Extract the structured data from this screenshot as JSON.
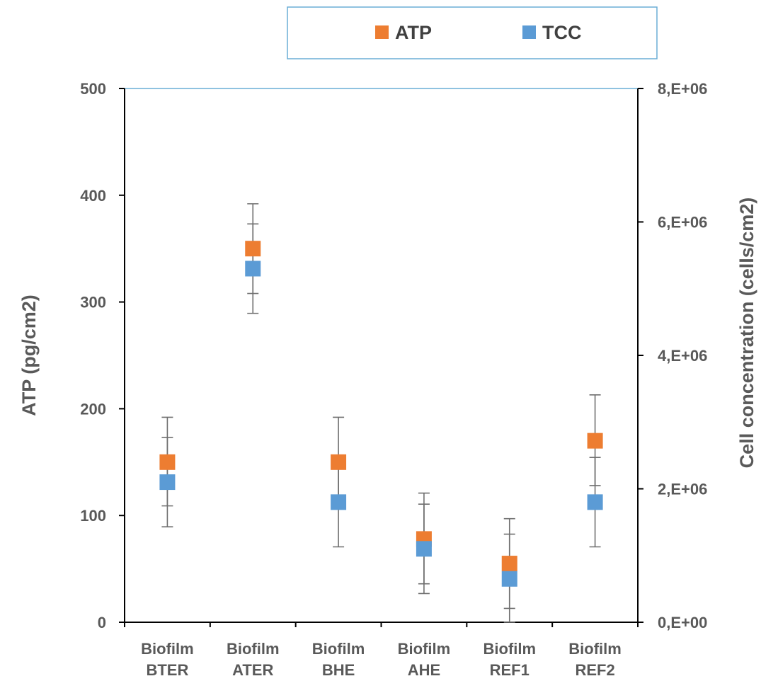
{
  "chart_data": {
    "type": "scatter",
    "categories": [
      "Biofilm\nBTER",
      "Biofilm\nATER",
      "Biofilm\nBHE",
      "Biofilm\nAHE",
      "Biofilm\nREF1",
      "Biofilm\nREF2"
    ],
    "series": [
      {
        "name": "ATP",
        "axis": "left",
        "color": "#ED7D31",
        "values": [
          150,
          350,
          150,
          78,
          55,
          170
        ],
        "err_low": [
          109,
          308,
          108,
          36,
          13,
          128
        ],
        "err_high": [
          192,
          392,
          192,
          121,
          97,
          213
        ]
      },
      {
        "name": "TCC",
        "axis": "right",
        "color": "#5B9BD5",
        "values": [
          2100000,
          5300000,
          1800000,
          1100000,
          650000,
          1800000
        ],
        "err_low": [
          1430000,
          4630000,
          1130000,
          430000,
          0,
          1130000
        ],
        "err_high": [
          2770000,
          5970000,
          2470000,
          1770000,
          1320000,
          2470000
        ]
      }
    ],
    "ylabel": "ATP (pg/cm2)",
    "ylim": [
      0,
      500
    ],
    "yticks": [
      "0",
      "100",
      "200",
      "300",
      "400",
      "500"
    ],
    "y2label": "Cell concentration (cells/cm2)",
    "y2lim": [
      0,
      8000000
    ],
    "y2ticks": [
      "0,E+00",
      "2,E+06",
      "4,E+06",
      "6,E+06",
      "8,E+06"
    ],
    "legend_position": "top",
    "grid": false
  }
}
